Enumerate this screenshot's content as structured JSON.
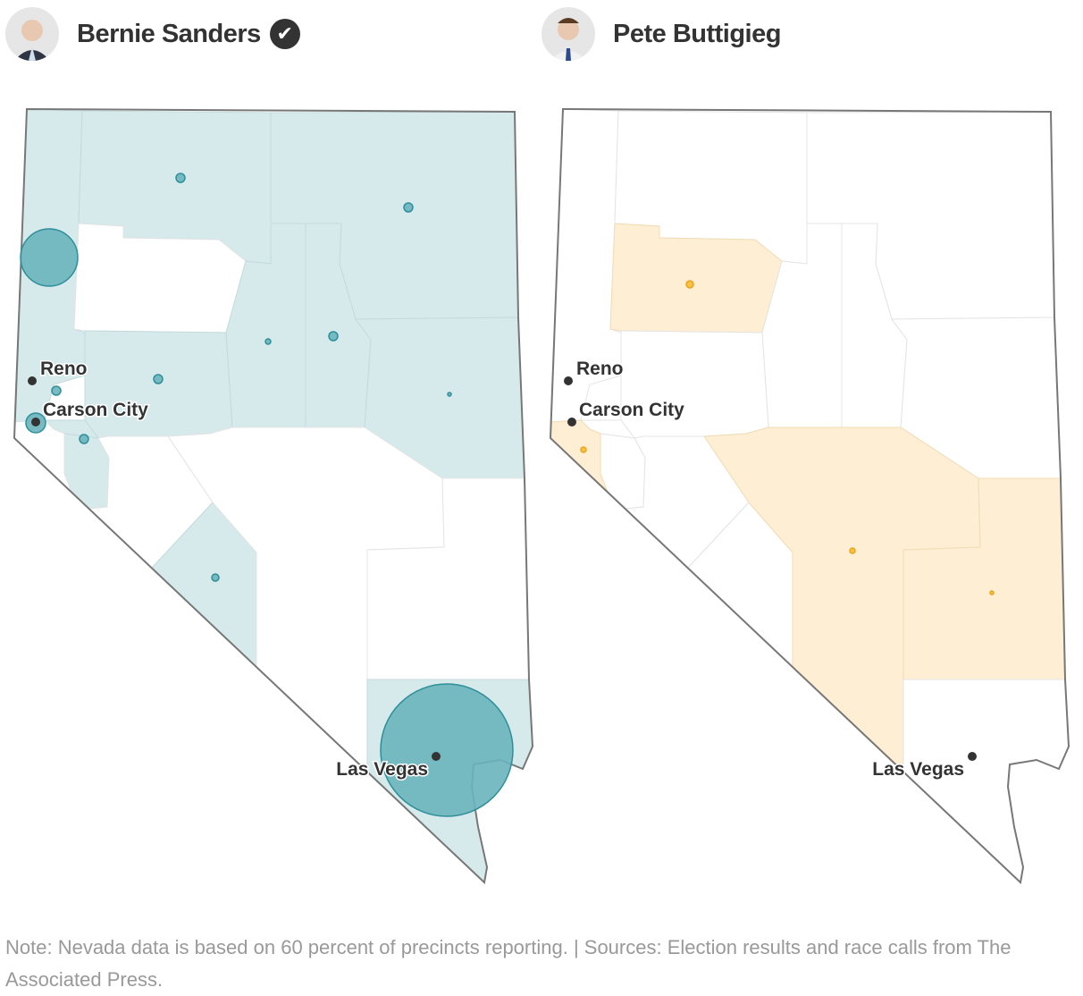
{
  "candidates": [
    {
      "name": "Bernie Sanders",
      "winner": true,
      "icon": "checkmark-icon",
      "color": "#6ab4bd",
      "fill": "#d7eaeb"
    },
    {
      "name": "Pete Buttigieg",
      "winner": false,
      "color": "#f9b935",
      "fill": "#fdeed4"
    }
  ],
  "cities": [
    "Reno",
    "Carson City",
    "Las Vegas"
  ],
  "note": "Note: Nevada data is based on 60 percent of precincts reporting. | Sources: Election results and race calls from The Associated Press."
}
